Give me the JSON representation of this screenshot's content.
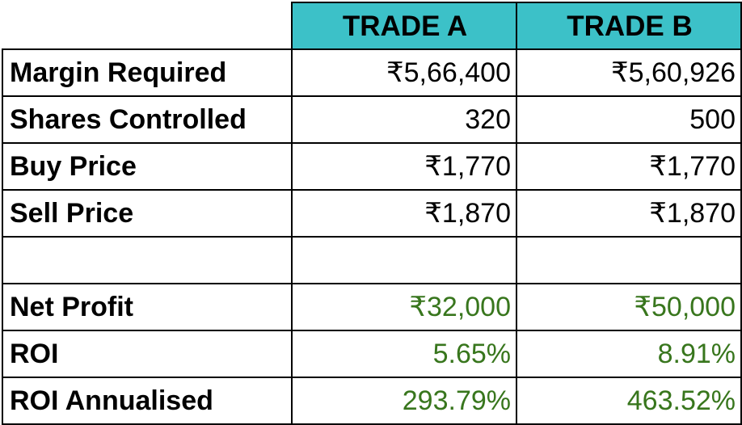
{
  "columns": {
    "trade_a": "TRADE A",
    "trade_b": "TRADE B"
  },
  "rows": {
    "margin_required": {
      "label": "Margin Required",
      "a": "₹5,66,400",
      "b": "₹5,60,926"
    },
    "shares_controlled": {
      "label": "Shares Controlled",
      "a": "320",
      "b": "500"
    },
    "buy_price": {
      "label": "Buy Price",
      "a": "₹1,770",
      "b": "₹1,770"
    },
    "sell_price": {
      "label": "Sell Price",
      "a": "₹1,870",
      "b": "₹1,870"
    },
    "net_profit": {
      "label": "Net Profit",
      "a": "₹32,000",
      "b": "₹50,000"
    },
    "roi": {
      "label": "ROI",
      "a": "5.65%",
      "b": "8.91%"
    },
    "roi_annualised": {
      "label": "ROI Annualised",
      "a": "293.79%",
      "b": "463.52%"
    }
  },
  "colors": {
    "header_bg": "#3cc1c8",
    "profit_green": "#38761d",
    "border": "#000000"
  }
}
